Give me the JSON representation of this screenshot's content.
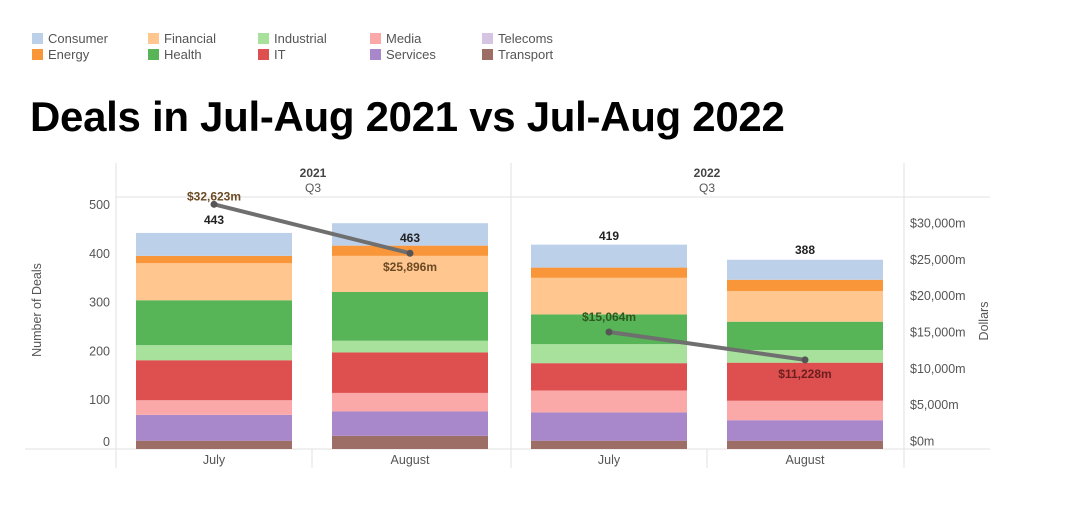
{
  "title": "Deals in Jul-Aug 2021 vs Jul-Aug 2022",
  "legend": [
    {
      "name": "Consumer",
      "color": "#bcd0ea"
    },
    {
      "name": "Energy",
      "color": "#f9963a"
    },
    {
      "name": "Financial",
      "color": "#ffc690"
    },
    {
      "name": "Health",
      "color": "#57b457"
    },
    {
      "name": "Industrial",
      "color": "#a7e19c"
    },
    {
      "name": "IT",
      "color": "#de4f4f"
    },
    {
      "name": "Media",
      "color": "#fba8a8"
    },
    {
      "name": "Services",
      "color": "#a887cb"
    },
    {
      "name": "Telecoms",
      "color": "#d5c4e2"
    },
    {
      "name": "Transport",
      "color": "#9c6e65"
    }
  ],
  "chart_data": {
    "type": "bar",
    "stacked": true,
    "title": "Deals in Jul-Aug 2021 vs Jul-Aug 2022",
    "column_headers": [
      {
        "year": "2021",
        "quarter": "Q3"
      },
      {
        "year": "2022",
        "quarter": "Q3"
      }
    ],
    "categories": [
      "July",
      "August",
      "July",
      "August"
    ],
    "groups": [
      "2021",
      "2021",
      "2022",
      "2022"
    ],
    "totals": [
      443,
      463,
      419,
      388
    ],
    "total_labels": [
      "443",
      "463",
      "419",
      "388"
    ],
    "ylabel": "Number of Deals",
    "ylim": [
      0,
      520
    ],
    "yticks": [
      0,
      100,
      200,
      300,
      400,
      500
    ],
    "y2label": "Dollars",
    "y2lim": [
      0,
      34000
    ],
    "y2ticks": [
      0,
      5000,
      10000,
      15000,
      20000,
      25000,
      30000
    ],
    "y2tick_labels": [
      "$0m",
      "$5,000m",
      "$10,000m",
      "$15,000m",
      "$20,000m",
      "$25,000m",
      "$30,000m"
    ],
    "series": [
      {
        "name": "Transport",
        "values": [
          17,
          27,
          17,
          17
        ]
      },
      {
        "name": "Services",
        "values": [
          53,
          50,
          58,
          42
        ]
      },
      {
        "name": "Media",
        "values": [
          30,
          38,
          45,
          40
        ]
      },
      {
        "name": "IT",
        "values": [
          82,
          83,
          56,
          78
        ]
      },
      {
        "name": "Industrial",
        "values": [
          31,
          24,
          39,
          26
        ]
      },
      {
        "name": "Health",
        "values": [
          92,
          100,
          61,
          58
        ]
      },
      {
        "name": "Financial",
        "values": [
          76,
          74,
          75,
          63
        ]
      },
      {
        "name": "Energy",
        "values": [
          15,
          21,
          21,
          23
        ]
      },
      {
        "name": "Consumer",
        "values": [
          47,
          46,
          47,
          41
        ]
      }
    ],
    "line_series": {
      "name": "Dollars",
      "color": "#6f6f6f",
      "groups": [
        {
          "group": "2021",
          "values": [
            32623,
            25896
          ],
          "labels": [
            "$32,623m",
            "$25,896m"
          ],
          "label_colors": [
            "#6b4a24",
            "#6b4a24"
          ]
        },
        {
          "group": "2022",
          "values": [
            15064,
            11228
          ],
          "labels": [
            "$15,064m",
            "$11,228m"
          ],
          "label_colors": [
            "#2f5a1f",
            "#6b1f1f"
          ]
        }
      ]
    },
    "grid": false,
    "legend_position": "top-left"
  }
}
